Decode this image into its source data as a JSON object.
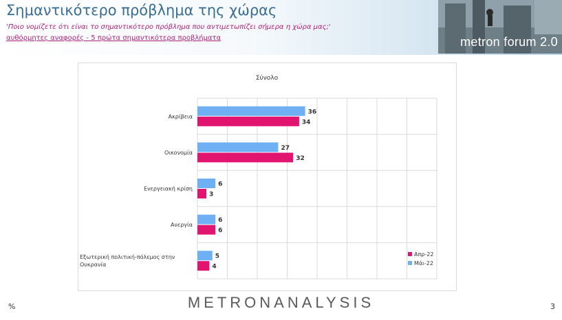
{
  "header": {
    "title": "Σημαντικότερο πρόβλημα της χώρας",
    "subtitle": "'Ποιο νομίζετε ότι  είναι το σημαντικότερο πρόβλημα που αντιμετωπίζει σήμερα η χώρα μας;'",
    "note": "αυθόρμητες αναφορές - 5 πρώτα σημαντικότερα προβλήματα",
    "logo_text": "metron forum 2.0"
  },
  "footer": {
    "brand": "METRONANALYSIS",
    "unit": "%",
    "page_number": "3"
  },
  "colors": {
    "may": "#6fb0f5",
    "apr": "#e1146f",
    "title_blue": "#3a6e93",
    "subtitle_magenta": "#b0207a"
  },
  "chart_data": {
    "type": "bar",
    "orientation": "horizontal",
    "title": "Σύνολο",
    "categories": [
      "Ακρίβεια",
      "Οικονομία",
      "Ενεργειακή κρίση",
      "Ανεργία",
      "Εξωτερική πολιτική-πόλεμος στην Ουκρανία"
    ],
    "series": [
      {
        "name": "Μάι-22",
        "values": [
          36,
          27,
          6,
          6,
          5
        ]
      },
      {
        "name": "Απρ-22",
        "values": [
          34,
          32,
          3,
          6,
          4
        ]
      }
    ],
    "xlim": [
      0,
      80
    ],
    "grid": true,
    "legend_position": "bottom-right"
  }
}
